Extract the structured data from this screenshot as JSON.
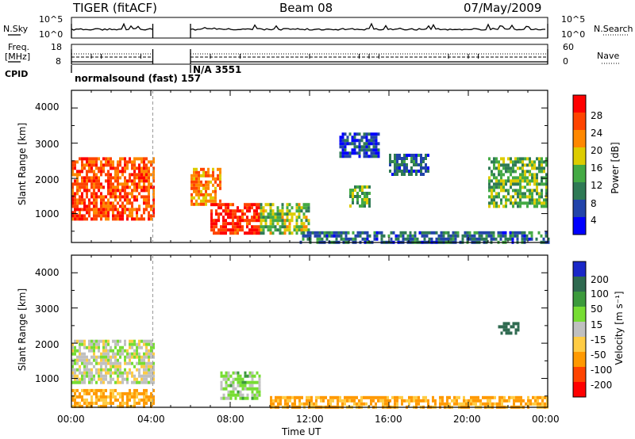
{
  "header": {
    "radar": "TIGER (fitACF)",
    "beam": "Beam 08",
    "date": "07/May/2009"
  },
  "sky_search_panel": {
    "left_label": "N.Sky",
    "right_label": "N.Search",
    "left_ticks": [
      "10^5",
      "10^0"
    ],
    "right_ticks": [
      "10^5",
      "10^0"
    ]
  },
  "freq_nave_panel": {
    "left_label_line1": "Freq.",
    "left_label_line2": "[MHz]",
    "right_label": "Nave",
    "left_ticks": [
      "18",
      "8"
    ],
    "right_ticks": [
      "60",
      "0"
    ]
  },
  "cpid_panel": {
    "label": "CPID",
    "segments": [
      {
        "text": "normalsound (fast) 157",
        "start_hour": 0,
        "end_hour": 4.1
      },
      {
        "text": "N/A 3551",
        "start_hour": 6.0,
        "end_hour": 24
      }
    ]
  },
  "gap": {
    "start_hour": 4.1,
    "end_hour": 6.0
  },
  "x_axis": {
    "label": "Time UT",
    "ticks": [
      "00:00",
      "04:00",
      "08:00",
      "12:00",
      "16:00",
      "20:00",
      "00:00"
    ]
  },
  "power_panel": {
    "ylabel": "Slant Range [km]",
    "yticks": [
      "1000",
      "2000",
      "3000",
      "4000"
    ],
    "colorbar_label": "Power [dB]",
    "colorbar_ticks": [
      "4",
      "8",
      "12",
      "16",
      "20",
      "24",
      "28"
    ],
    "colors": [
      "#0000ff",
      "#2244aa",
      "#2f7a55",
      "#44aa44",
      "#ddcc00",
      "#ff8800",
      "#ff4400",
      "#ff0000"
    ]
  },
  "velocity_panel": {
    "ylabel": "Slant Range [km]",
    "yticks": [
      "1000",
      "2000",
      "3000",
      "4000"
    ],
    "colorbar_label": "Velocity [m s⁻¹]",
    "colorbar_ticks": [
      "200",
      "100",
      "50",
      "15",
      "-15",
      "-50",
      "-100",
      "-200"
    ],
    "colors": [
      "#1a28c8",
      "#2f6a50",
      "#3c9a3c",
      "#77dd33",
      "#c0c0c0",
      "#ffcc44",
      "#ff9900",
      "#ff4400",
      "#ff0000"
    ]
  },
  "chart_data": [
    {
      "type": "heatmap",
      "title": "Power",
      "xlabel": "Time UT",
      "ylabel": "Slant Range [km]",
      "xlim": [
        0,
        24
      ],
      "ylim": [
        180,
        4500
      ],
      "units": "dB",
      "colorbar_range": [
        0,
        30
      ],
      "echo_regions": [
        {
          "t": [
            0,
            4.1
          ],
          "range": [
            800,
            2600
          ],
          "power": 26
        },
        {
          "t": [
            6.0,
            7.5
          ],
          "range": [
            1300,
            2300
          ],
          "power": 22
        },
        {
          "t": [
            7.0,
            9.5
          ],
          "range": [
            400,
            1300
          ],
          "power": 28
        },
        {
          "t": [
            9.5,
            12.0
          ],
          "range": [
            400,
            1300
          ],
          "power": 16
        },
        {
          "t": [
            11.5,
            24
          ],
          "range": [
            200,
            500
          ],
          "power": 8
        },
        {
          "t": [
            13.5,
            15.5
          ],
          "range": [
            2600,
            3300
          ],
          "power": 6
        },
        {
          "t": [
            14.0,
            15.0
          ],
          "range": [
            1200,
            1800
          ],
          "power": 14
        },
        {
          "t": [
            16.0,
            18.0
          ],
          "range": [
            2100,
            2700
          ],
          "power": 8
        },
        {
          "t": [
            21.0,
            24
          ],
          "range": [
            1200,
            2600
          ],
          "power": 14
        }
      ]
    },
    {
      "type": "heatmap",
      "title": "Velocity",
      "xlabel": "Time UT",
      "ylabel": "Slant Range [km]",
      "xlim": [
        0,
        24
      ],
      "ylim": [
        180,
        4500
      ],
      "units": "m s^-1",
      "colorbar_range": [
        -200,
        200
      ],
      "echo_regions": [
        {
          "t": [
            0,
            4.1
          ],
          "range": [
            900,
            2100
          ],
          "velocity": 0
        },
        {
          "t": [
            0,
            4.1
          ],
          "range": [
            200,
            700
          ],
          "velocity": -60
        },
        {
          "t": [
            7.5,
            9.5
          ],
          "range": [
            400,
            1200
          ],
          "velocity": 25
        },
        {
          "t": [
            10,
            24
          ],
          "range": [
            200,
            500
          ],
          "velocity": -60
        },
        {
          "t": [
            21.5,
            22.5
          ],
          "range": [
            2300,
            2600
          ],
          "velocity": 150
        }
      ]
    }
  ]
}
